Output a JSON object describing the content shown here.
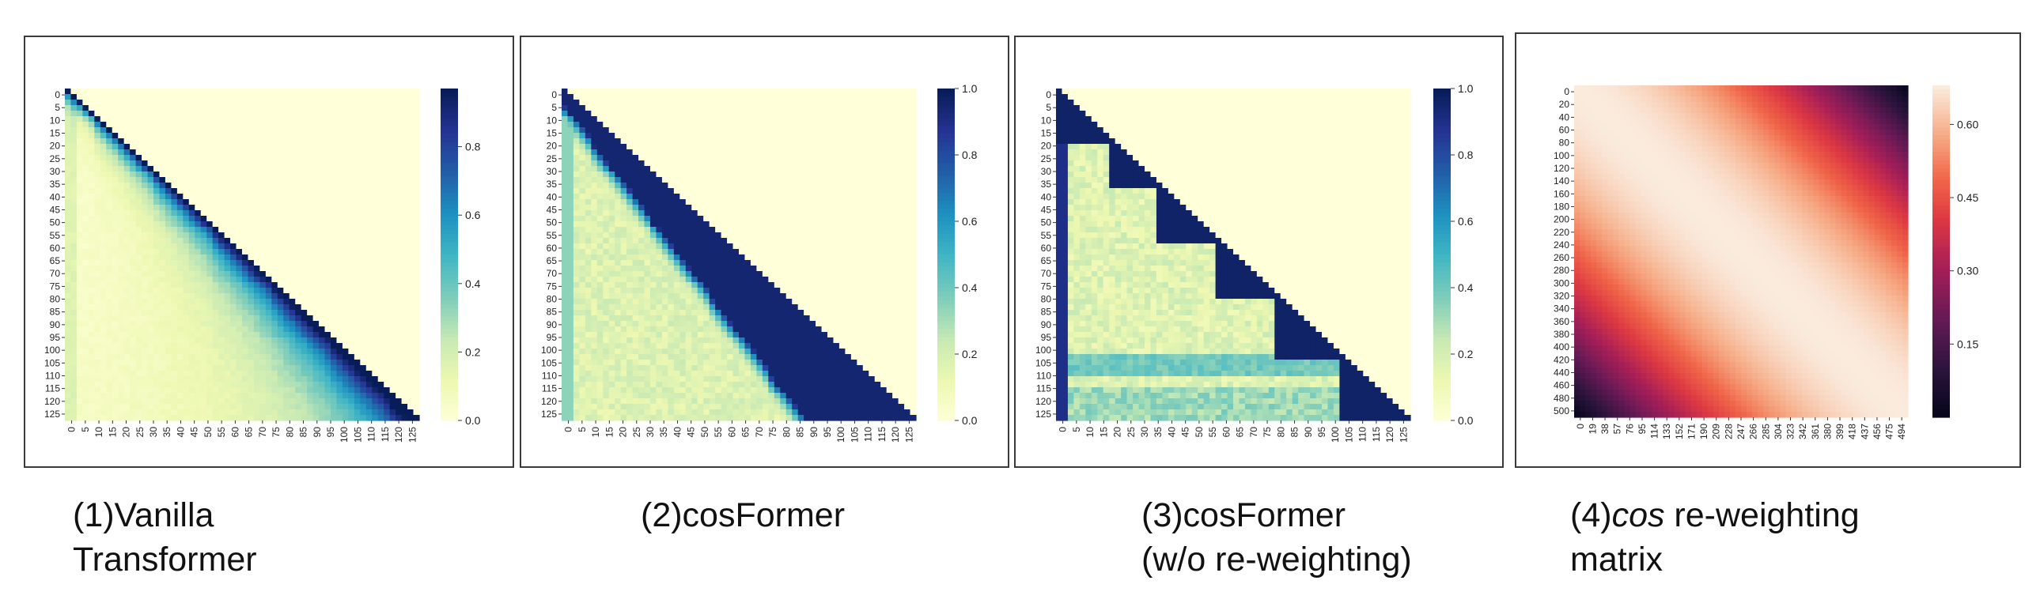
{
  "chart_data": [
    {
      "type": "heatmap",
      "title": "",
      "caption_lines": [
        "(1)Vanilla",
        "Transformer"
      ],
      "pattern": "vanilla",
      "x_ticks": [
        "0",
        "5",
        "10",
        "15",
        "20",
        "25",
        "30",
        "35",
        "40",
        "45",
        "50",
        "55",
        "60",
        "65",
        "70",
        "75",
        "80",
        "85",
        "90",
        "95",
        "100",
        "105",
        "110",
        "115",
        "120",
        "125"
      ],
      "y_ticks": [
        "0",
        "5",
        "10",
        "15",
        "20",
        "25",
        "30",
        "35",
        "40",
        "45",
        "50",
        "55",
        "60",
        "65",
        "70",
        "75",
        "80",
        "85",
        "90",
        "95",
        "100",
        "105",
        "110",
        "115",
        "120",
        "125"
      ],
      "colorbar": {
        "colormap": "YlGnBu",
        "min": 0.0,
        "max": 0.97,
        "ticks": [
          "0.0",
          "0.2",
          "0.4",
          "0.6",
          "0.8"
        ],
        "tick_values": [
          0.0,
          0.2,
          0.4,
          0.6,
          0.8
        ]
      }
    },
    {
      "type": "heatmap",
      "title": "",
      "caption_lines": [
        "(2)cosFormer"
      ],
      "pattern": "cosformer",
      "x_ticks": [
        "0",
        "5",
        "10",
        "15",
        "20",
        "25",
        "30",
        "35",
        "40",
        "45",
        "50",
        "55",
        "60",
        "65",
        "70",
        "75",
        "80",
        "85",
        "90",
        "95",
        "100",
        "105",
        "110",
        "115",
        "120",
        "125"
      ],
      "y_ticks": [
        "0",
        "5",
        "10",
        "15",
        "20",
        "25",
        "30",
        "35",
        "40",
        "45",
        "50",
        "55",
        "60",
        "65",
        "70",
        "75",
        "80",
        "85",
        "90",
        "95",
        "100",
        "105",
        "110",
        "115",
        "120",
        "125"
      ],
      "colorbar": {
        "colormap": "YlGnBu",
        "min": 0.0,
        "max": 1.0,
        "ticks": [
          "0.0",
          "0.2",
          "0.4",
          "0.6",
          "0.8",
          "1.0"
        ],
        "tick_values": [
          0.0,
          0.2,
          0.4,
          0.6,
          0.8,
          1.0
        ]
      }
    },
    {
      "type": "heatmap",
      "title": "",
      "caption_lines": [
        "(3)cosFormer",
        "(w/o re-weighting)"
      ],
      "pattern": "noreweight",
      "x_ticks": [
        "0",
        "5",
        "10",
        "15",
        "20",
        "25",
        "30",
        "35",
        "40",
        "45",
        "50",
        "55",
        "60",
        "65",
        "70",
        "75",
        "80",
        "85",
        "90",
        "95",
        "100",
        "105",
        "110",
        "115",
        "120",
        "125"
      ],
      "y_ticks": [
        "0",
        "5",
        "10",
        "15",
        "20",
        "25",
        "30",
        "35",
        "40",
        "45",
        "50",
        "55",
        "60",
        "65",
        "70",
        "75",
        "80",
        "85",
        "90",
        "95",
        "100",
        "105",
        "110",
        "115",
        "120",
        "125"
      ],
      "colorbar": {
        "colormap": "YlGnBu",
        "min": 0.0,
        "max": 1.0,
        "ticks": [
          "0.0",
          "0.2",
          "0.4",
          "0.6",
          "0.8",
          "1.0"
        ],
        "tick_values": [
          0.0,
          0.2,
          0.4,
          0.6,
          0.8,
          1.0
        ]
      }
    },
    {
      "type": "heatmap",
      "title": "",
      "caption_italic": "cos",
      "caption_lines": [
        "(4)",
        " re-weighting",
        "matrix"
      ],
      "pattern": "cosine",
      "x_ticks": [
        "0",
        "19",
        "38",
        "57",
        "76",
        "95",
        "114",
        "133",
        "152",
        "171",
        "190",
        "209",
        "228",
        "247",
        "266",
        "285",
        "304",
        "323",
        "342",
        "361",
        "380",
        "399",
        "418",
        "437",
        "456",
        "475",
        "494"
      ],
      "y_ticks": [
        "0",
        "20",
        "40",
        "60",
        "80",
        "100",
        "120",
        "140",
        "160",
        "180",
        "200",
        "220",
        "240",
        "260",
        "280",
        "300",
        "320",
        "340",
        "360",
        "380",
        "400",
        "420",
        "440",
        "460",
        "480",
        "500"
      ],
      "colorbar": {
        "colormap": "rocket",
        "min": 0.0,
        "max": 0.68,
        "ticks": [
          "0.15",
          "0.30",
          "0.45",
          "0.60"
        ],
        "tick_values": [
          0.15,
          0.3,
          0.45,
          0.6
        ]
      }
    }
  ]
}
